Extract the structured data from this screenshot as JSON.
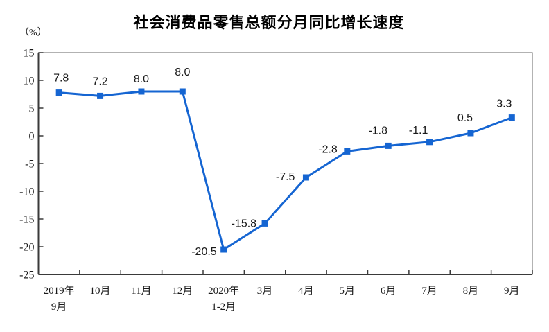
{
  "page": {
    "background": "#ffffff"
  },
  "header": {
    "title": "社会消费品零售总额分月同比增长速度",
    "unit_label": "（%）"
  },
  "chart_data": {
    "type": "line",
    "title": "社会消费品零售总额分月同比增长速度",
    "unit_label": "（%）",
    "categories": [
      [
        "2019年",
        "9月"
      ],
      [
        "10月"
      ],
      [
        "11月"
      ],
      [
        "12月"
      ],
      [
        "2020年",
        "1-2月"
      ],
      [
        "3月"
      ],
      [
        "4月"
      ],
      [
        "5月"
      ],
      [
        "6月"
      ],
      [
        "7月"
      ],
      [
        "8月"
      ],
      [
        "9月"
      ]
    ],
    "values": [
      7.8,
      7.2,
      8.0,
      8.0,
      -20.5,
      -15.8,
      -7.5,
      -2.8,
      -1.8,
      -1.1,
      0.5,
      3.3
    ],
    "data_labels": [
      "7.8",
      "7.2",
      "8.0",
      "8.0",
      "-20.5",
      "-15.8",
      "-7.5",
      "-2.8",
      "-1.8",
      "-1.1",
      "0.5",
      "3.3"
    ],
    "xlabel": "",
    "ylabel": "（%）",
    "ylim": [
      -25,
      15
    ],
    "ytick_step": 5,
    "yticks": [
      "15",
      "10",
      "5",
      "0",
      "-5",
      "-10",
      "-15",
      "-20",
      "-25"
    ],
    "grid": false,
    "legend": "none",
    "colors": {
      "line": "#1565d2",
      "marker": "#1565d2",
      "text": "#1a1a1a",
      "frame": "#808080",
      "axis": "#3a3a3a"
    },
    "marker_shape": "square"
  }
}
